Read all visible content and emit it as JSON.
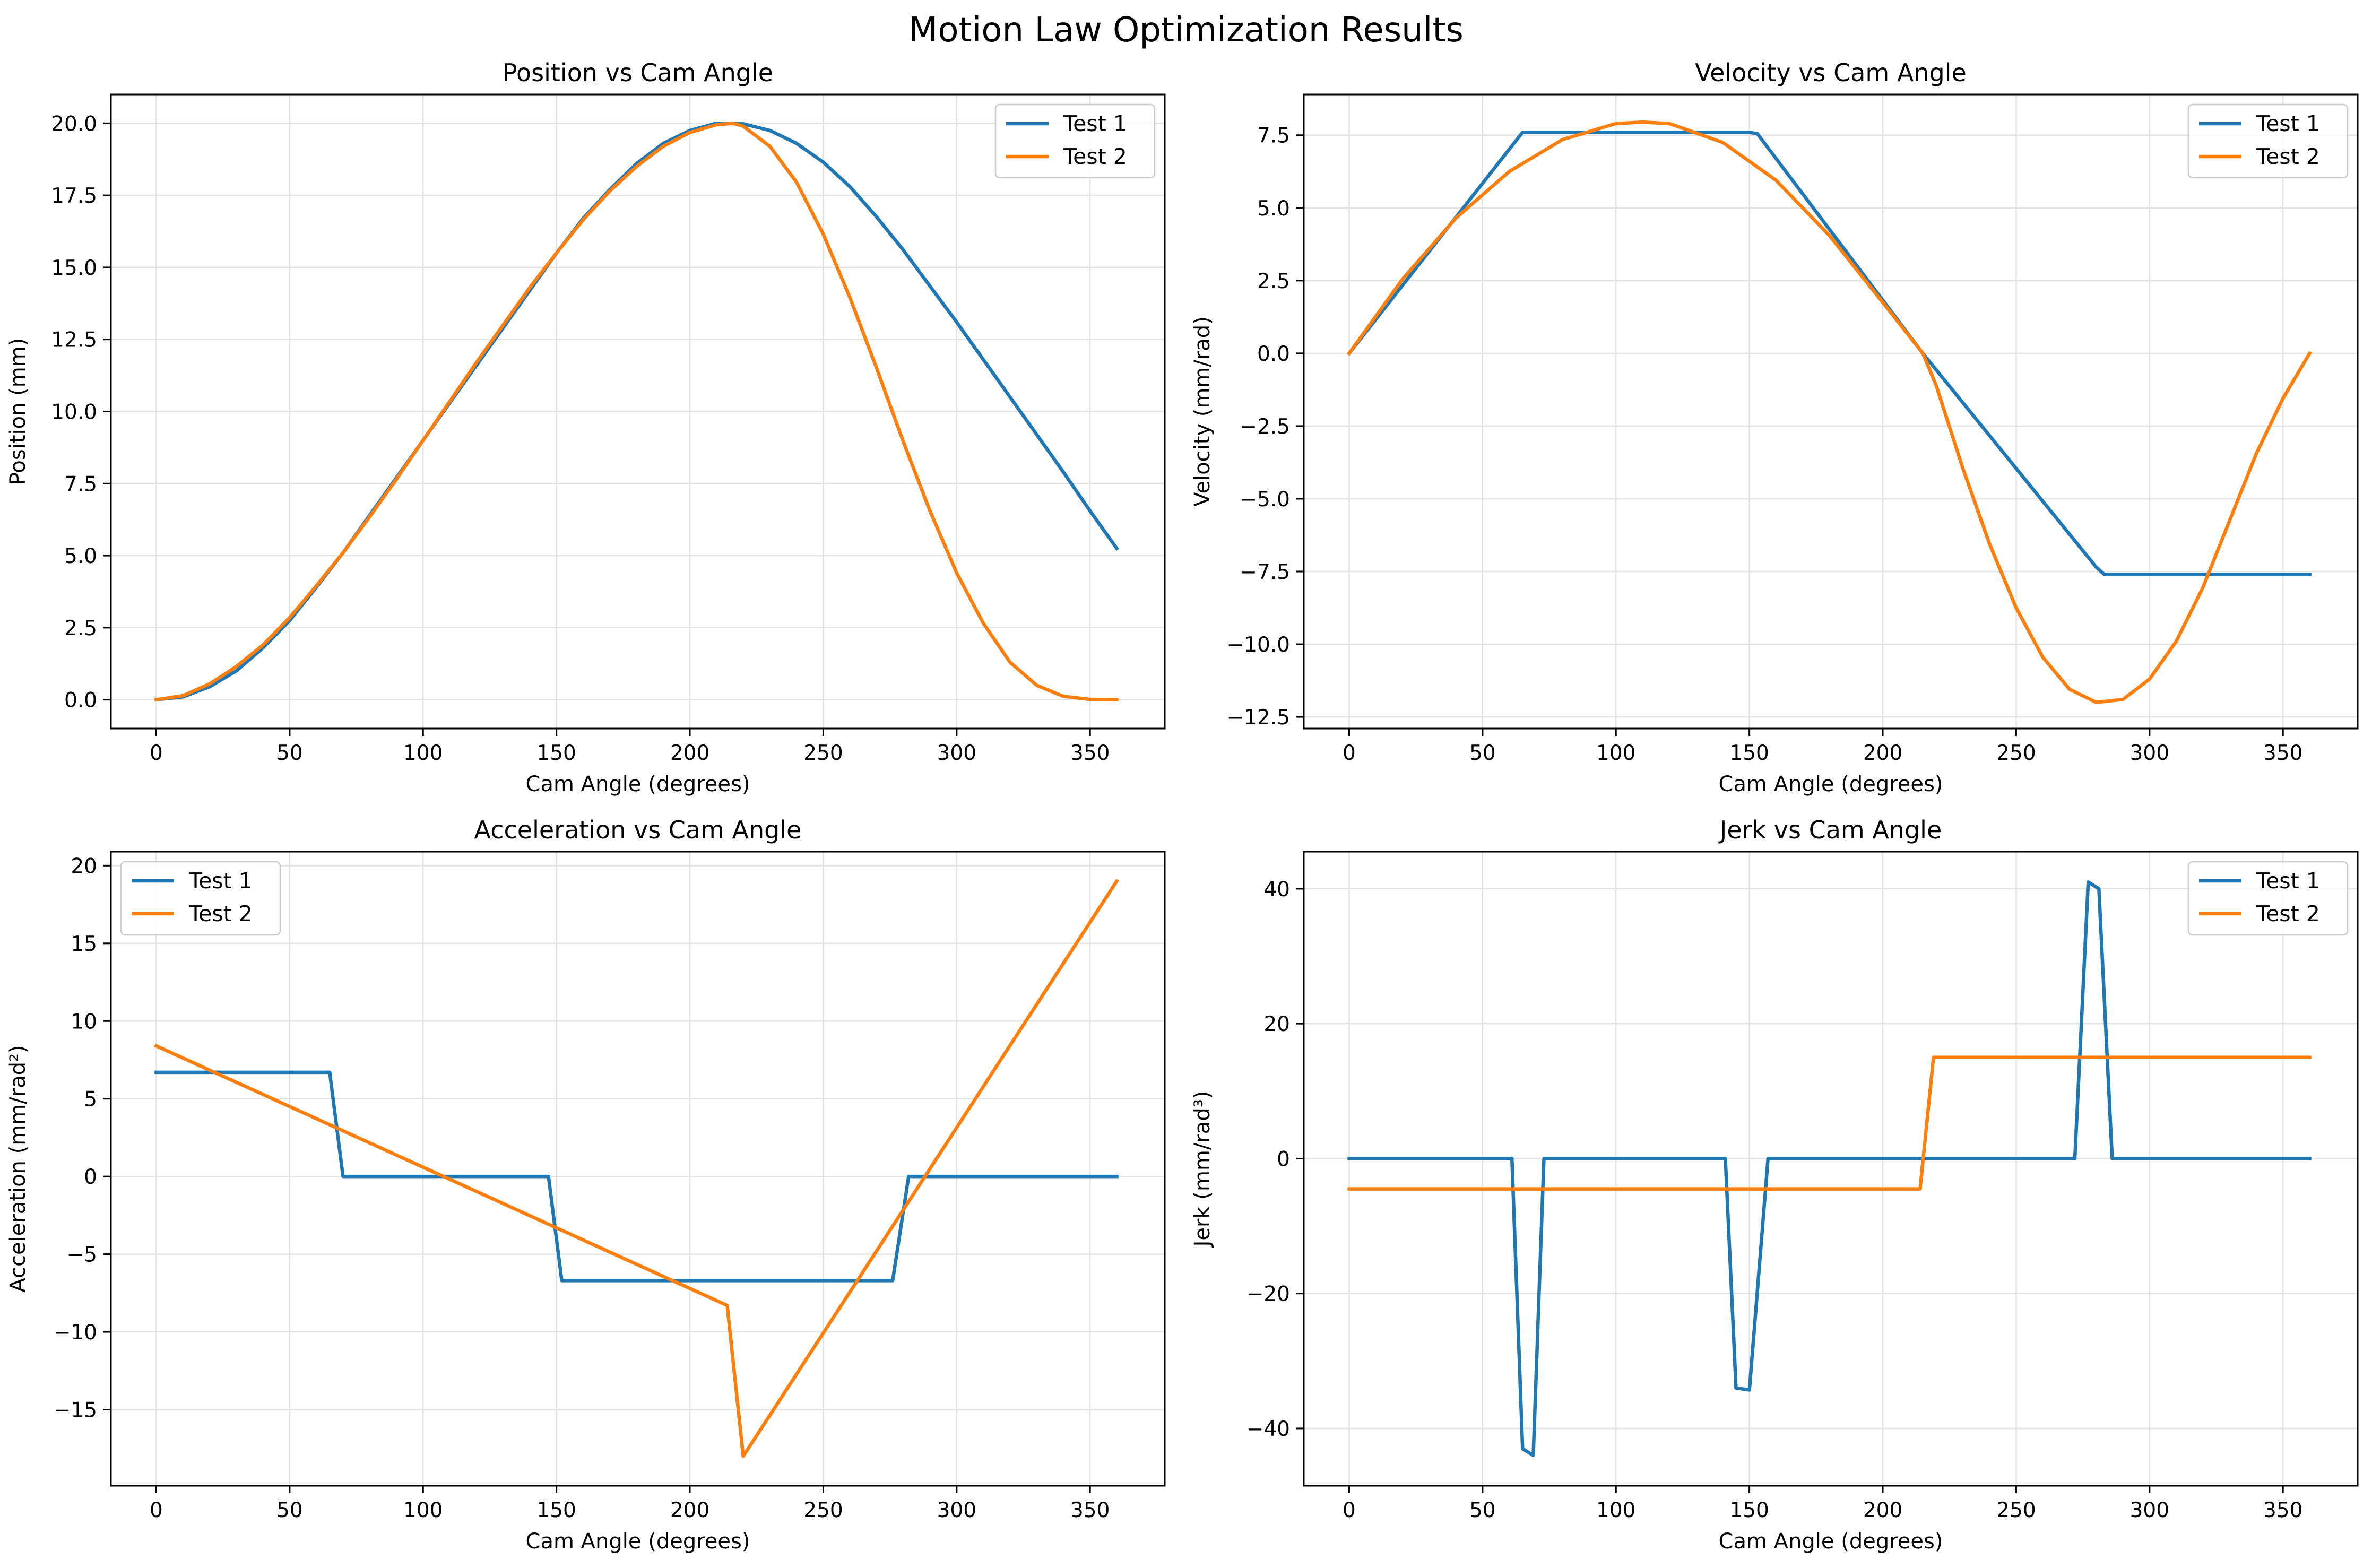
{
  "figure": {
    "suptitle": "Motion Law Optimization Results"
  },
  "colors": {
    "test1": "#1f77b4",
    "test2": "#ff7f0e",
    "grid": "#e3e3e3"
  },
  "chart_data": [
    {
      "type": "line",
      "title": "Position vs Cam Angle",
      "xlabel": "Cam Angle (degrees)",
      "ylabel": "Position (mm)",
      "xlim": [
        -17,
        378
      ],
      "ylim": [
        -1.0,
        21.0
      ],
      "xticks": [
        0,
        50,
        100,
        150,
        200,
        250,
        300,
        350
      ],
      "yticks": [
        0.0,
        2.5,
        5.0,
        7.5,
        10.0,
        12.5,
        15.0,
        17.5,
        20.0
      ],
      "ytick_labels": [
        "0.0",
        "2.5",
        "5.0",
        "7.5",
        "10.0",
        "12.5",
        "15.0",
        "17.5",
        "20.0"
      ],
      "grid": true,
      "legend": "top-right",
      "series": [
        {
          "name": "Test 1",
          "x": [
            0,
            10,
            20,
            30,
            40,
            50,
            60,
            70,
            80,
            90,
            100,
            110,
            120,
            130,
            140,
            150,
            160,
            170,
            180,
            190,
            200,
            210,
            220,
            230,
            240,
            250,
            260,
            270,
            280,
            290,
            300,
            310,
            320,
            330,
            340,
            350,
            360
          ],
          "y": [
            0.0,
            0.1,
            0.45,
            1.0,
            1.8,
            2.75,
            3.9,
            5.1,
            6.4,
            7.7,
            9.0,
            10.3,
            11.6,
            12.9,
            14.2,
            15.5,
            16.7,
            17.7,
            18.6,
            19.3,
            19.75,
            20.0,
            19.98,
            19.75,
            19.3,
            18.65,
            17.8,
            16.75,
            15.6,
            14.35,
            13.1,
            11.8,
            10.5,
            9.2,
            7.9,
            6.55,
            5.25
          ]
        },
        {
          "name": "Test 2",
          "x": [
            0,
            10,
            20,
            30,
            40,
            50,
            60,
            70,
            80,
            90,
            100,
            110,
            120,
            130,
            140,
            150,
            160,
            170,
            180,
            190,
            200,
            210,
            216,
            220,
            230,
            240,
            250,
            260,
            270,
            280,
            290,
            300,
            310,
            320,
            330,
            340,
            350,
            360
          ],
          "y": [
            0.0,
            0.14,
            0.55,
            1.15,
            1.9,
            2.85,
            3.95,
            5.1,
            6.35,
            7.65,
            9.0,
            10.35,
            11.7,
            13.0,
            14.3,
            15.5,
            16.65,
            17.65,
            18.5,
            19.2,
            19.68,
            19.95,
            20.0,
            19.9,
            19.2,
            17.95,
            16.15,
            13.95,
            11.5,
            8.95,
            6.55,
            4.4,
            2.65,
            1.3,
            0.5,
            0.12,
            0.01,
            0.0
          ]
        }
      ]
    },
    {
      "type": "line",
      "title": "Velocity vs Cam Angle",
      "xlabel": "Cam Angle (degrees)",
      "ylabel": "Velocity (mm/rad)",
      "xlim": [
        -17,
        378
      ],
      "ylim": [
        -12.9,
        8.9
      ],
      "xticks": [
        0,
        50,
        100,
        150,
        200,
        250,
        300,
        350
      ],
      "yticks": [
        -12.5,
        -10.0,
        -7.5,
        -5.0,
        -2.5,
        0.0,
        2.5,
        5.0,
        7.5
      ],
      "ytick_labels": [
        "−12.5",
        "−10.0",
        "−7.5",
        "−5.0",
        "−2.5",
        "0.0",
        "2.5",
        "5.0",
        "7.5"
      ],
      "grid": true,
      "legend": "top-right",
      "series": [
        {
          "name": "Test 1",
          "x": [
            0,
            65,
            150,
            153,
            215,
            280,
            283,
            360
          ],
          "y": [
            0.0,
            7.6,
            7.6,
            7.55,
            0.0,
            -7.35,
            -7.6,
            -7.6
          ]
        },
        {
          "name": "Test 2",
          "x": [
            0,
            20,
            40,
            60,
            80,
            100,
            110,
            120,
            140,
            160,
            180,
            200,
            215,
            220,
            230,
            240,
            250,
            260,
            270,
            280,
            290,
            300,
            310,
            320,
            330,
            340,
            350,
            360
          ],
          "y": [
            0.0,
            2.55,
            4.65,
            6.25,
            7.35,
            7.9,
            7.95,
            7.9,
            7.25,
            5.95,
            4.05,
            1.75,
            0.0,
            -1.1,
            -3.95,
            -6.55,
            -8.75,
            -10.45,
            -11.55,
            -12.0,
            -11.9,
            -11.2,
            -9.9,
            -8.05,
            -5.75,
            -3.45,
            -1.55,
            0.0
          ]
        }
      ]
    },
    {
      "type": "line",
      "title": "Acceleration vs Cam Angle",
      "xlabel": "Cam Angle (degrees)",
      "ylabel": "Acceleration (mm/rad²)",
      "xlim": [
        -17,
        378
      ],
      "ylim": [
        -19.9,
        20.9
      ],
      "xticks": [
        0,
        50,
        100,
        150,
        200,
        250,
        300,
        350
      ],
      "yticks": [
        -15,
        -10,
        -5,
        0,
        5,
        10,
        15,
        20
      ],
      "ytick_labels": [
        "−15",
        "−10",
        "−5",
        "0",
        "5",
        "10",
        "15",
        "20"
      ],
      "grid": true,
      "legend": "top-left",
      "series": [
        {
          "name": "Test 1",
          "x": [
            0,
            65,
            70,
            147,
            152,
            276,
            282,
            360
          ],
          "y": [
            6.7,
            6.7,
            0.0,
            0.0,
            -6.7,
            -6.7,
            0.0,
            0.0
          ]
        },
        {
          "name": "Test 2",
          "x": [
            0,
            214,
            220,
            360
          ],
          "y": [
            8.4,
            -8.3,
            -18.0,
            19.0
          ]
        }
      ]
    },
    {
      "type": "line",
      "title": "Jerk vs Cam Angle",
      "xlabel": "Cam Angle (degrees)",
      "ylabel": "Jerk (mm/rad³)",
      "xlim": [
        -17,
        378
      ],
      "ylim": [
        -48.5,
        45.5
      ],
      "xticks": [
        0,
        50,
        100,
        150,
        200,
        250,
        300,
        350
      ],
      "yticks": [
        -40,
        -20,
        0,
        20,
        40
      ],
      "ytick_labels": [
        "−40",
        "−20",
        "0",
        "20",
        "40"
      ],
      "grid": true,
      "legend": "top-right",
      "series": [
        {
          "name": "Test 1",
          "x": [
            0,
            61,
            65,
            69,
            73,
            141,
            145,
            150,
            157,
            272,
            277,
            281,
            286,
            360
          ],
          "y": [
            0,
            0,
            -43,
            -44,
            0,
            0,
            -34,
            -34.3,
            0,
            0,
            41,
            40,
            0,
            0
          ]
        },
        {
          "name": "Test 2",
          "x": [
            0,
            214,
            219,
            360
          ],
          "y": [
            -4.5,
            -4.5,
            15.0,
            15.0
          ]
        }
      ]
    }
  ]
}
